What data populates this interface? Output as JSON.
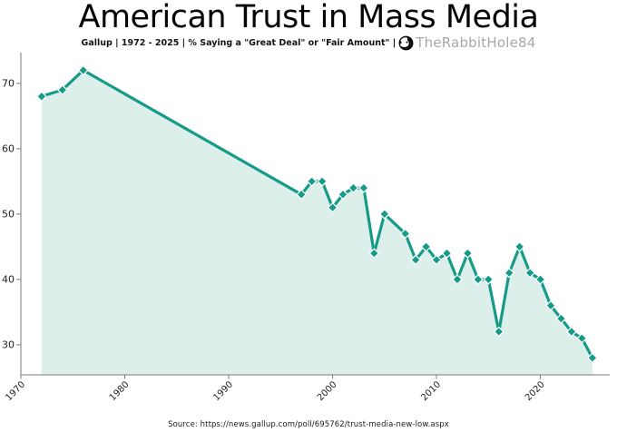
{
  "header": {
    "title": "American Trust in Mass Media",
    "subtitle": "Gallup | 1972 - 2025 | % Saying a \"Great Deal\" or \"Fair Amount\" |",
    "brand": "TheRabbitHole84",
    "brand_icon": "rabbit-in-circle-icon"
  },
  "footer": {
    "source": "Source: https://news.gallup.com/poll/695762/trust-media-new-low.aspx"
  },
  "colors": {
    "line": "#169b89",
    "fill": "#ddefeb",
    "axis": "#7a7a7a",
    "tick_label": "#1f1f1f",
    "marker_edge": "#ffffff",
    "brand_text": "#a8a8a8"
  },
  "chart_data": {
    "type": "line",
    "title": "American Trust in Mass Media",
    "series_name": "% saying a Great Deal or Fair Amount of trust",
    "xlabel": "",
    "ylabel": "",
    "marker": "diamond",
    "area_fill": true,
    "grid": false,
    "legend": "none",
    "x": [
      1972,
      1974,
      1976,
      1997,
      1998,
      1999,
      2000,
      2001,
      2002,
      2003,
      2004,
      2005,
      2007,
      2008,
      2009,
      2010,
      2011,
      2012,
      2013,
      2014,
      2015,
      2016,
      2017,
      2018,
      2019,
      2020,
      2021,
      2022,
      2023,
      2024,
      2025
    ],
    "y": [
      68,
      69,
      72,
      53,
      55,
      55,
      51,
      53,
      54,
      54,
      44,
      50,
      47,
      43,
      45,
      43,
      44,
      40,
      44,
      40,
      40,
      32,
      41,
      45,
      41,
      40,
      36,
      34,
      32,
      31,
      28
    ],
    "xticks": [
      1970,
      1980,
      1990,
      2000,
      2010,
      2020
    ],
    "yticks": [
      30,
      40,
      50,
      60,
      70
    ],
    "xlim": [
      1970,
      2026.5
    ],
    "ylim": [
      25.4,
      74.7
    ]
  }
}
